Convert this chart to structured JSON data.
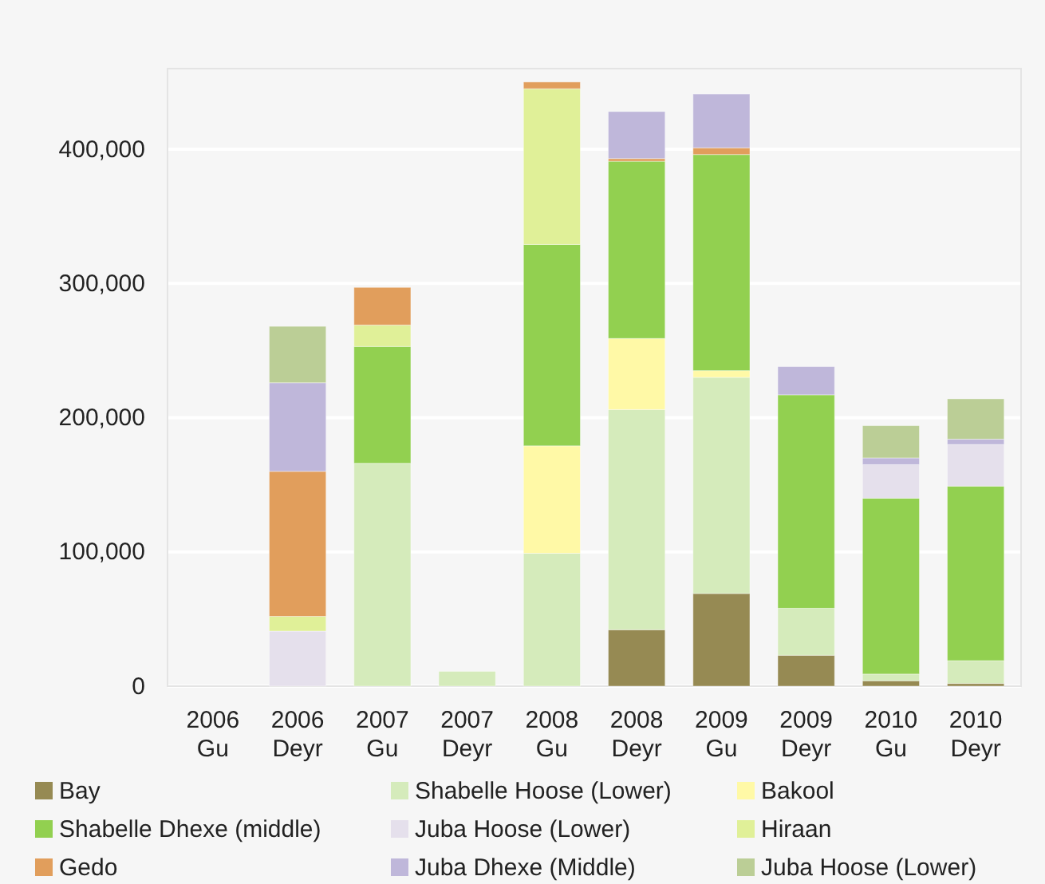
{
  "chart_data": {
    "type": "bar",
    "stacked": true,
    "grid": "y",
    "legend": "bottom",
    "categories": [
      "2006 Gu",
      "2006 Deyr",
      "2007 Gu",
      "2007 Deyr",
      "2008 Gu",
      "2008 Deyr",
      "2009 Gu",
      "2009 Deyr",
      "2010 Gu",
      "2010 Deyr"
    ],
    "ylim": [
      0,
      460000
    ],
    "yticks": [
      {
        "value": 0,
        "label": "0"
      },
      {
        "value": 100000,
        "label": "100,000"
      },
      {
        "value": 200000,
        "label": "200,000"
      },
      {
        "value": 300000,
        "label": "300,000"
      },
      {
        "value": 400000,
        "label": "400,000"
      }
    ],
    "series": [
      {
        "name": "Bay",
        "color": "#968a53",
        "values": [
          null,
          null,
          null,
          null,
          null,
          42000,
          69000,
          23000,
          4000,
          2000
        ]
      },
      {
        "name": "Shabelle Hoose (Lower)",
        "color": "#d5ebbb",
        "values": [
          null,
          null,
          166000,
          11000,
          99000,
          164000,
          161000,
          35000,
          5000,
          17000
        ]
      },
      {
        "name": "Bakool",
        "color": "#fff9a6",
        "values": [
          null,
          null,
          null,
          null,
          80000,
          53000,
          5000,
          null,
          null,
          null
        ]
      },
      {
        "name": "Shabelle Dhexe (middle)",
        "color": "#92d050",
        "values": [
          null,
          null,
          87000,
          null,
          150000,
          132000,
          161000,
          159000,
          131000,
          130000
        ]
      },
      {
        "name": "Juba Hoose (Lower)",
        "color": "#e5e0ec",
        "values": [
          null,
          41000,
          null,
          null,
          null,
          null,
          null,
          null,
          25000,
          31000
        ]
      },
      {
        "name": "Hiraan",
        "color": "#e0f098",
        "values": [
          null,
          11000,
          16000,
          null,
          116000,
          null,
          null,
          null,
          null,
          null
        ]
      },
      {
        "name": "Gedo",
        "color": "#e19e5c",
        "values": [
          null,
          108000,
          28000,
          null,
          5000,
          2000,
          5000,
          null,
          null,
          null
        ]
      },
      {
        "name": "Juba Dhexe (Middle)",
        "color": "#bfb7da",
        "values": [
          null,
          66000,
          null,
          null,
          null,
          35000,
          40000,
          21000,
          5000,
          4000
        ]
      },
      {
        "name": "Juba Hoose (Lower)",
        "color": "#bbce96",
        "values": [
          null,
          42000,
          null,
          null,
          null,
          null,
          null,
          null,
          24000,
          30000
        ]
      }
    ]
  }
}
